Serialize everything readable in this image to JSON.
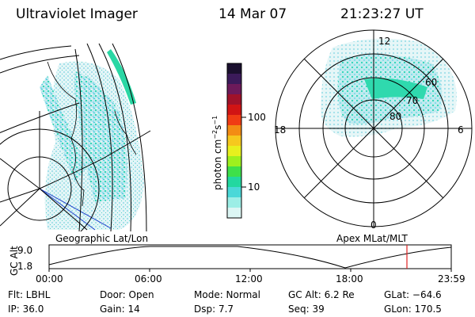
{
  "header": {
    "instrument": "Ultraviolet Imager",
    "date": "14 Mar 07",
    "time": "21:23:27 UT"
  },
  "colorbar": {
    "unit_label": "photon cm",
    "unit_sup1": "−2",
    "unit_mid": "s",
    "unit_sup2": "−1",
    "ticks": [
      "100",
      "10"
    ],
    "colors": [
      "#1a0f2e",
      "#3b1a5a",
      "#6d1a5a",
      "#a0122a",
      "#d11414",
      "#f03c14",
      "#f38c14",
      "#f6c81e",
      "#e8f01e",
      "#9ef01e",
      "#3ee04a",
      "#22d8a0",
      "#4ad8d8",
      "#9ceee6",
      "#dcf6f4"
    ]
  },
  "polar": {
    "mlt_labels": {
      "top": "12",
      "left": "18",
      "right": "6",
      "bottom": "0"
    },
    "lat_labels": [
      "60",
      "70",
      "80"
    ]
  },
  "timeline": {
    "left_label": "Geographic Lat/Lon",
    "right_label": "Apex MLat/MLT",
    "axis_title": "GC Alt",
    "y_ticks": [
      "9.0",
      "1.8"
    ],
    "x_ticks": [
      "00:00",
      "06:00",
      "12:00",
      "18:00",
      "23:59"
    ],
    "marker_color": "#e02020"
  },
  "status": {
    "row1": [
      {
        "name": "filter",
        "text": "Flt: LBHL"
      },
      {
        "name": "door",
        "text": "Door: Open"
      },
      {
        "name": "mode",
        "text": "Mode: Normal"
      },
      {
        "name": "gc-alt",
        "text": "GC Alt: 6.2 Re"
      },
      {
        "name": "glat",
        "text": "GLat: −64.6"
      }
    ],
    "row2": [
      {
        "name": "ip",
        "text": "IP: 36.0"
      },
      {
        "name": "gain",
        "text": "Gain: 14"
      },
      {
        "name": "dsp",
        "text": "Dsp:    7.7"
      },
      {
        "name": "seq",
        "text": "Seq: 39"
      },
      {
        "name": "glon",
        "text": "GLon: 170.5"
      }
    ]
  }
}
